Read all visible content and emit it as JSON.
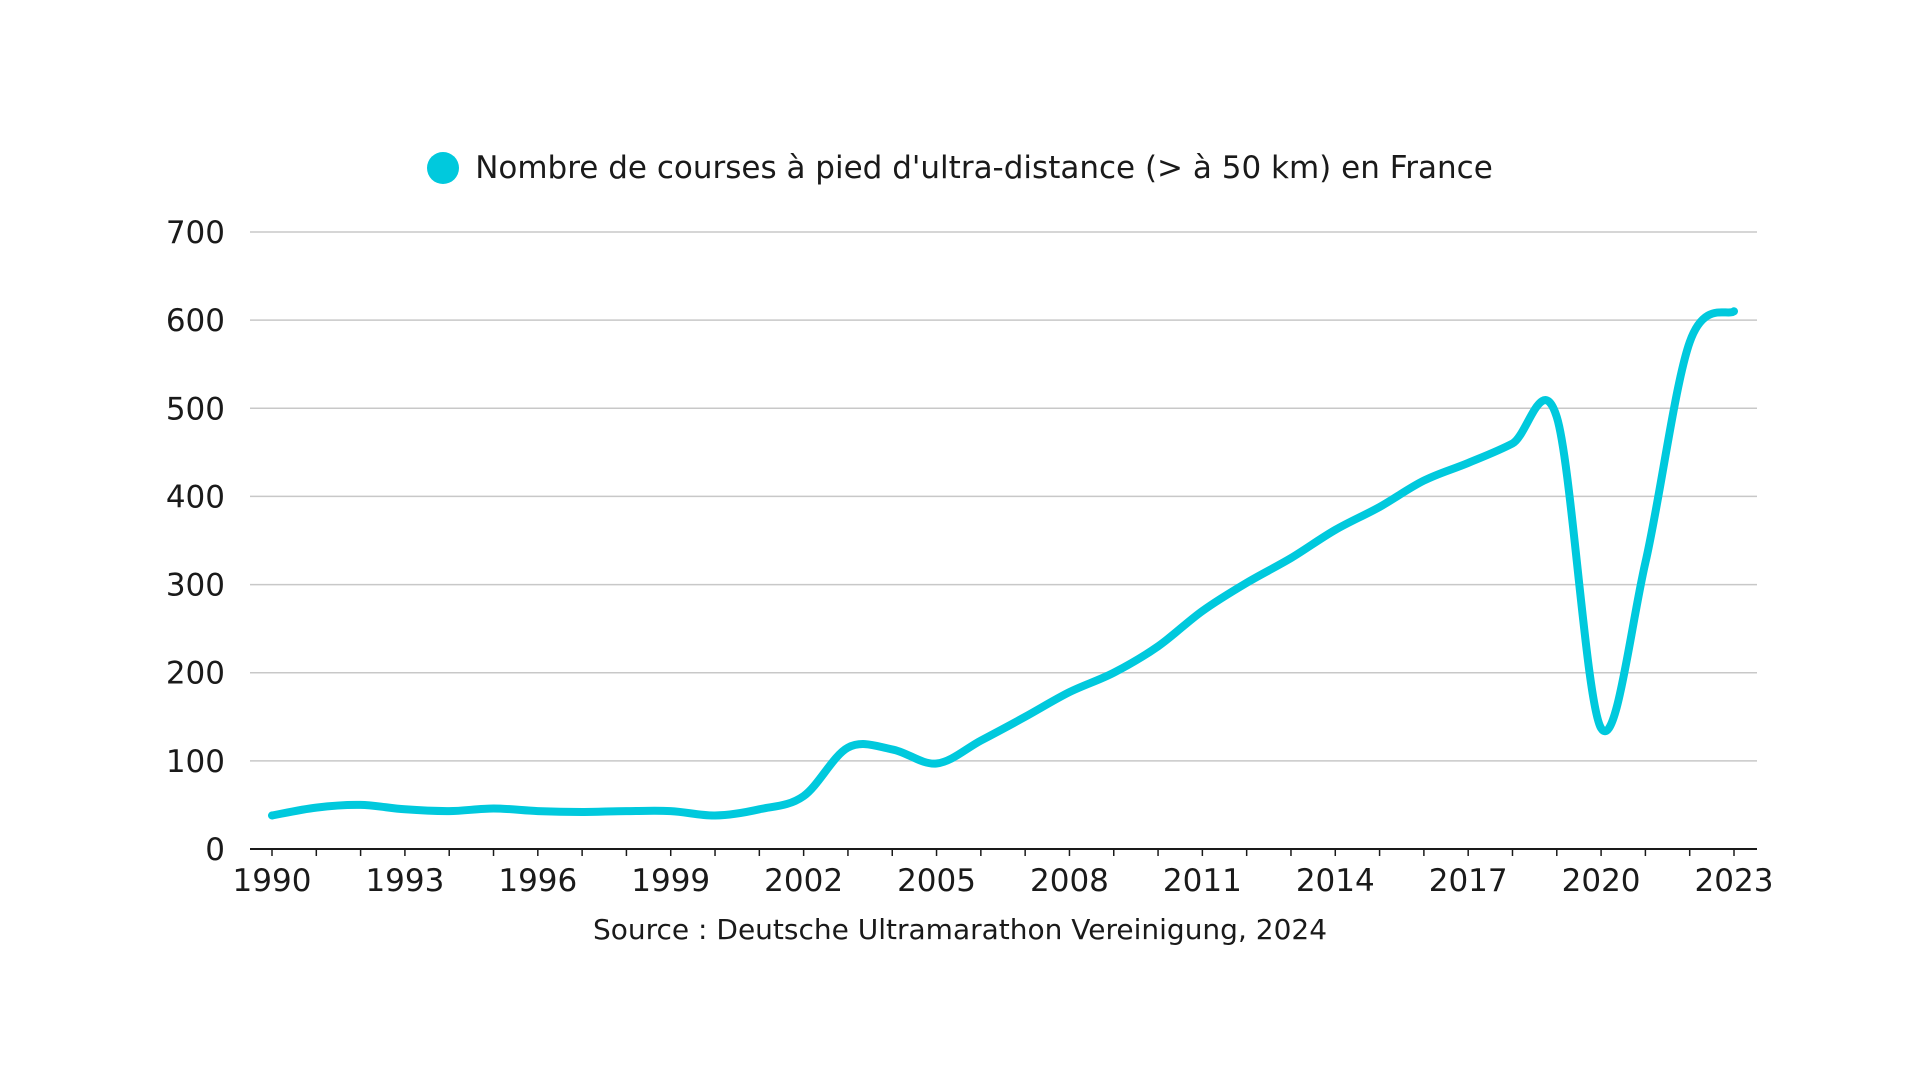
{
  "chart_data": {
    "type": "line",
    "title": "",
    "xlabel": "",
    "ylabel": "",
    "legend_position": "top-center",
    "grid": true,
    "ylim": [
      0,
      700
    ],
    "yticks": [
      0,
      100,
      200,
      300,
      400,
      500,
      600,
      700
    ],
    "xticks": [
      1990,
      1993,
      1996,
      1999,
      2002,
      2005,
      2008,
      2011,
      2014,
      2017,
      2020,
      2023
    ],
    "series": [
      {
        "name": "Nombre de courses à pied d'ultra-distance (> à 50 km) en France",
        "color": "#00C9DD",
        "x": [
          1990,
          1991,
          1992,
          1993,
          1994,
          1995,
          1996,
          1997,
          1998,
          1999,
          2000,
          2001,
          2002,
          2003,
          2004,
          2005,
          2006,
          2007,
          2008,
          2009,
          2010,
          2011,
          2012,
          2013,
          2014,
          2015,
          2016,
          2017,
          2018,
          2019,
          2020,
          2021,
          2022,
          2023
        ],
        "values": [
          38,
          47,
          50,
          45,
          43,
          46,
          43,
          42,
          43,
          43,
          38,
          45,
          60,
          115,
          113,
          97,
          123,
          150,
          178,
          200,
          230,
          270,
          302,
          330,
          362,
          388,
          418,
          438,
          460,
          490,
          137,
          325,
          575,
          610
        ]
      }
    ]
  },
  "source_text": "Source : Deutsche Ultramarathon Vereinigung, 2024"
}
